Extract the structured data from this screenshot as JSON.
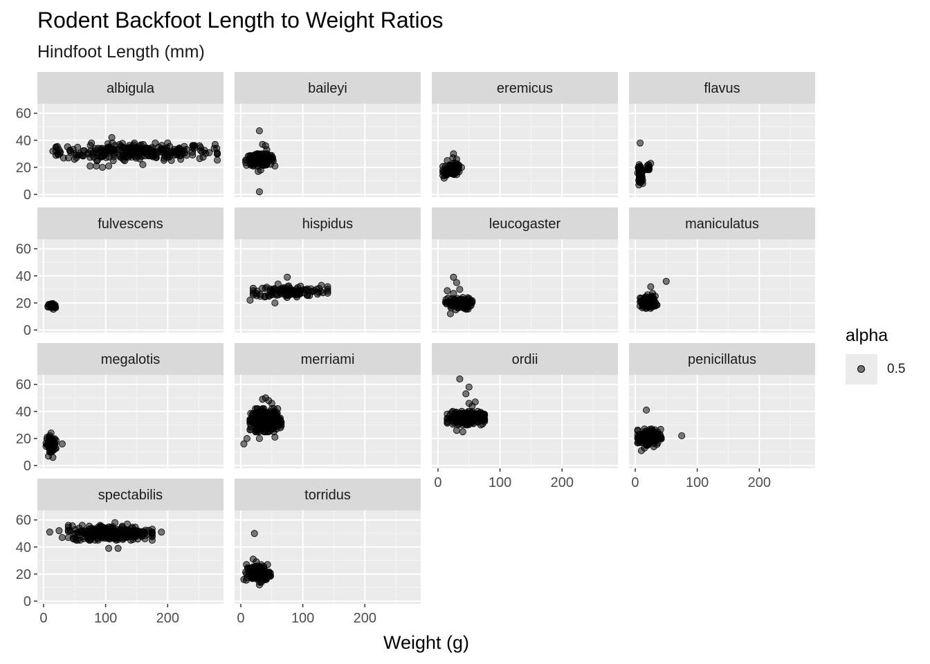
{
  "chart_data": {
    "type": "scatter",
    "title": "Rodent Backfoot Length to Weight Ratios",
    "subtitle": "Hindfoot Length (mm)",
    "xlabel": "Weight (g)",
    "ylabel": "",
    "xlim": [
      -10,
      290
    ],
    "ylim": [
      -2,
      67
    ],
    "x_ticks": [
      0,
      100,
      200
    ],
    "y_ticks": [
      0,
      20,
      40,
      60
    ],
    "grid": true,
    "facet_wrap": {
      "ncol": 4
    },
    "legend": {
      "title": "alpha",
      "entries": [
        "0.5"
      ],
      "placement": "right"
    },
    "point_color": "#000000",
    "point_alpha": 0.5,
    "panel_background": "#ebebeb",
    "strip_background": "#d9d9d9",
    "panels": [
      {
        "species": "albigula",
        "clusters": [
          {
            "x_range": [
              20,
              280
            ],
            "y_range": [
              25,
              38
            ],
            "n": 260
          }
        ],
        "points": [
          [
            110,
            42
          ],
          [
            75,
            21
          ],
          [
            85,
            21
          ],
          [
            95,
            20
          ],
          [
            105,
            21
          ],
          [
            160,
            22
          ],
          [
            25,
            33
          ],
          [
            15,
            32
          ],
          [
            275,
            34
          ],
          [
            40,
            27
          ],
          [
            50,
            26
          ],
          [
            180,
            38
          ]
        ]
      },
      {
        "species": "baileyi",
        "clusters": [
          {
            "x_range": [
              8,
              55
            ],
            "y_range": [
              21,
              30
            ],
            "n": 160
          }
        ],
        "points": [
          [
            30,
            47
          ],
          [
            30,
            2
          ],
          [
            35,
            37
          ],
          [
            40,
            36
          ],
          [
            42,
            33
          ],
          [
            28,
            17
          ],
          [
            32,
            18
          ]
        ]
      },
      {
        "species": "eremicus",
        "clusters": [
          {
            "x_range": [
              8,
              38
            ],
            "y_range": [
              14,
              23
            ],
            "n": 90
          }
        ],
        "points": [
          [
            25,
            30
          ],
          [
            24,
            27
          ],
          [
            10,
            12
          ],
          [
            30,
            26
          ],
          [
            15,
            25
          ]
        ]
      },
      {
        "species": "flavus",
        "clusters": [
          {
            "x_range": [
              4,
              12
            ],
            "y_range": [
              9,
              22
            ],
            "n": 60
          },
          {
            "x_range": [
              18,
              25
            ],
            "y_range": [
              17,
              23
            ],
            "n": 10
          }
        ],
        "points": [
          [
            8,
            38
          ],
          [
            6,
            7
          ],
          [
            12,
            8
          ]
        ]
      },
      {
        "species": "fulvescens",
        "clusters": [
          {
            "x_range": [
              7,
              20
            ],
            "y_range": [
              15,
              20
            ],
            "n": 40
          }
        ],
        "points": []
      },
      {
        "species": "hispidus",
        "clusters": [
          {
            "x_range": [
              20,
              140
            ],
            "y_range": [
              24,
              33
            ],
            "n": 110
          }
        ],
        "points": [
          [
            75,
            39
          ],
          [
            60,
            34
          ],
          [
            55,
            20
          ],
          [
            15,
            22
          ],
          [
            140,
            32
          ],
          [
            130,
            33
          ],
          [
            25,
            27
          ]
        ]
      },
      {
        "species": "leucogaster",
        "clusters": [
          {
            "x_range": [
              12,
              55
            ],
            "y_range": [
              15,
              24
            ],
            "n": 120
          }
        ],
        "points": [
          [
            25,
            39
          ],
          [
            30,
            35
          ],
          [
            15,
            29
          ],
          [
            35,
            30
          ],
          [
            20,
            12
          ],
          [
            25,
            27
          ]
        ]
      },
      {
        "species": "maniculatus",
        "clusters": [
          {
            "x_range": [
              8,
              35
            ],
            "y_range": [
              16,
              25
            ],
            "n": 110
          }
        ],
        "points": [
          [
            50,
            36
          ],
          [
            25,
            32
          ],
          [
            28,
            27
          ],
          [
            20,
            26
          ]
        ]
      },
      {
        "species": "megalotis",
        "clusters": [
          {
            "x_range": [
              4,
              20
            ],
            "y_range": [
              10,
              21
            ],
            "n": 80
          }
        ],
        "points": [
          [
            10,
            22
          ],
          [
            8,
            7
          ],
          [
            15,
            6
          ],
          [
            30,
            16
          ],
          [
            12,
            24
          ]
        ]
      },
      {
        "species": "merriami",
        "clusters": [
          {
            "x_range": [
              15,
              65
            ],
            "y_range": [
              25,
              42
            ],
            "n": 260
          }
        ],
        "points": [
          [
            40,
            50
          ],
          [
            45,
            48
          ],
          [
            35,
            49
          ],
          [
            5,
            16
          ],
          [
            10,
            20
          ],
          [
            55,
            21
          ],
          [
            30,
            20
          ],
          [
            50,
            46
          ]
        ]
      },
      {
        "species": "ordii",
        "clusters": [
          {
            "x_range": [
              15,
              75
            ],
            "y_range": [
              30,
              40
            ],
            "n": 240
          }
        ],
        "points": [
          [
            35,
            64
          ],
          [
            50,
            58
          ],
          [
            45,
            53
          ],
          [
            55,
            44
          ],
          [
            60,
            47
          ],
          [
            50,
            46
          ],
          [
            30,
            26
          ],
          [
            40,
            25
          ]
        ]
      },
      {
        "species": "penicillatus",
        "clusters": [
          {
            "x_range": [
              4,
              42
            ],
            "y_range": [
              15,
              27
            ],
            "n": 150
          }
        ],
        "points": [
          [
            18,
            41
          ],
          [
            75,
            22
          ],
          [
            10,
            11
          ],
          [
            15,
            13
          ],
          [
            30,
            14
          ],
          [
            40,
            23
          ]
        ]
      },
      {
        "species": "spectabilis",
        "clusters": [
          {
            "x_range": [
              40,
              175
            ],
            "y_range": [
              45,
              56
            ],
            "n": 300
          }
        ],
        "points": [
          [
            10,
            51
          ],
          [
            25,
            52
          ],
          [
            105,
            39
          ],
          [
            120,
            39
          ],
          [
            190,
            51
          ],
          [
            30,
            47
          ],
          [
            135,
            57
          ],
          [
            115,
            58
          ]
        ]
      },
      {
        "species": "torridus",
        "clusters": [
          {
            "x_range": [
              8,
              48
            ],
            "y_range": [
              14,
              27
            ],
            "n": 130
          }
        ],
        "points": [
          [
            22,
            50
          ],
          [
            20,
            31
          ],
          [
            25,
            29
          ],
          [
            5,
            16
          ],
          [
            40,
            22
          ],
          [
            30,
            12
          ]
        ]
      }
    ]
  }
}
